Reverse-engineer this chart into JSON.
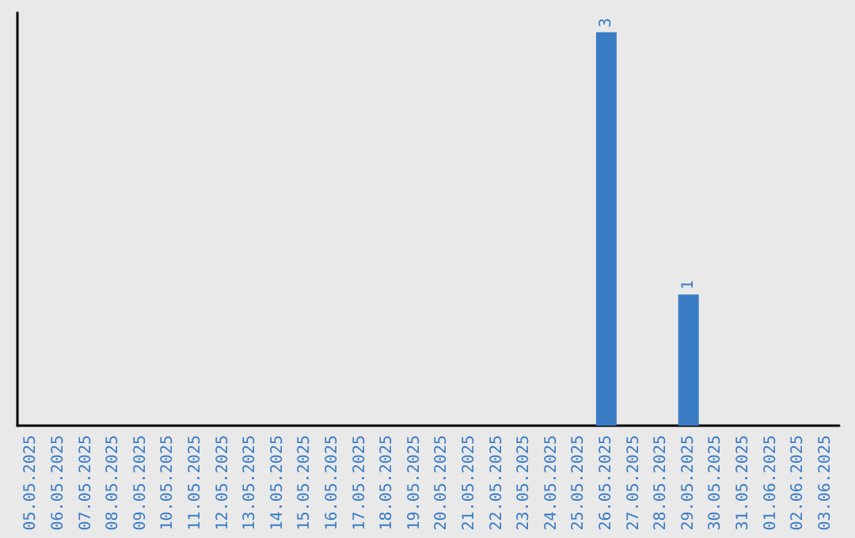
{
  "chart_data": {
    "type": "bar",
    "categories": [
      "05.05.2025",
      "06.05.2025",
      "07.05.2025",
      "08.05.2025",
      "09.05.2025",
      "10.05.2025",
      "11.05.2025",
      "12.05.2025",
      "13.05.2025",
      "14.05.2025",
      "15.05.2025",
      "16.05.2025",
      "17.05.2025",
      "18.05.2025",
      "19.05.2025",
      "20.05.2025",
      "21.05.2025",
      "22.05.2025",
      "23.05.2025",
      "24.05.2025",
      "25.05.2025",
      "26.05.2025",
      "27.05.2025",
      "28.05.2025",
      "29.05.2025",
      "30.05.2025",
      "31.05.2025",
      "01.06.2025",
      "02.06.2025",
      "03.06.2025"
    ],
    "values": [
      null,
      null,
      null,
      null,
      null,
      null,
      null,
      null,
      null,
      null,
      null,
      null,
      null,
      null,
      null,
      null,
      null,
      null,
      null,
      null,
      null,
      3,
      null,
      null,
      1,
      null,
      null,
      null,
      null,
      null
    ],
    "value_labels": [
      null,
      null,
      null,
      null,
      null,
      null,
      null,
      null,
      null,
      null,
      null,
      null,
      null,
      null,
      null,
      null,
      null,
      null,
      null,
      null,
      null,
      "3",
      null,
      null,
      "1",
      null,
      null,
      null,
      null,
      null
    ],
    "color": "#3b7dc4",
    "grid": false,
    "tick_labels": "x"
  }
}
